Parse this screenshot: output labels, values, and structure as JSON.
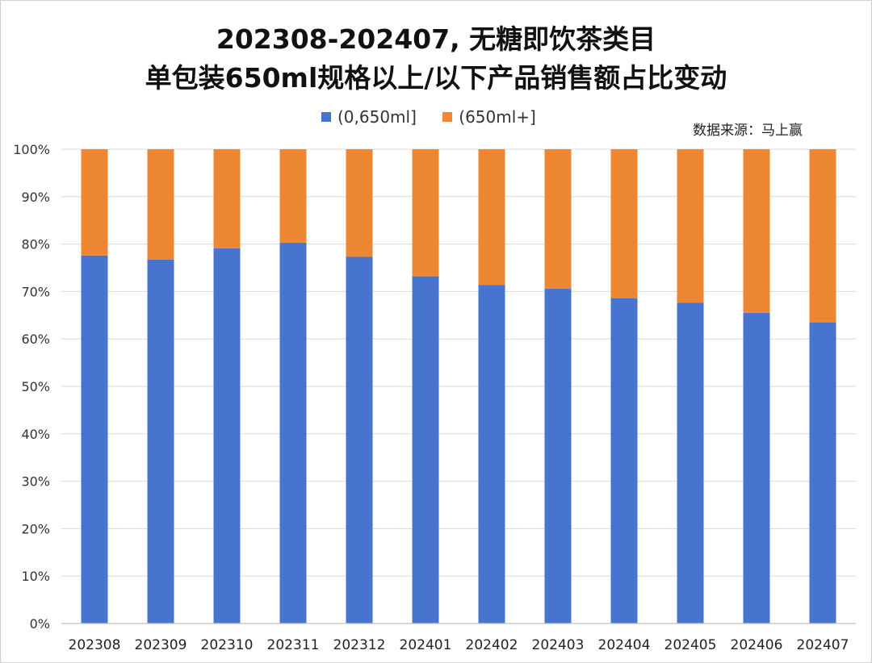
{
  "title": {
    "line1": "202308-202407, 无糖即饮茶类目",
    "line2": "单包装650ml规格以上/以下产品销售额占比变动"
  },
  "source_note": "数据来源：马上赢",
  "colors": {
    "series_small": "#4674CF",
    "series_large": "#EE8732",
    "grid": "#d9d9d9",
    "axis": "#bfbfbf"
  },
  "chart_data": {
    "type": "bar",
    "stacked": true,
    "percent_stacked": true,
    "title": "202308-202407, 无糖即饮茶类目 单包装650ml规格以上/以下产品销售额占比变动",
    "categories": [
      "202308",
      "202309",
      "202310",
      "202311",
      "202312",
      "202401",
      "202402",
      "202403",
      "202404",
      "202405",
      "202406",
      "202407"
    ],
    "series": [
      {
        "name": "(0,650ml]",
        "color": "#4674CF",
        "values": [
          77.6,
          76.7,
          79.1,
          80.3,
          77.3,
          73.2,
          71.4,
          70.6,
          68.6,
          67.6,
          65.5,
          63.5
        ]
      },
      {
        "name": "(650ml+]",
        "color": "#EE8732",
        "values": [
          22.4,
          23.3,
          20.9,
          19.7,
          22.7,
          26.8,
          28.6,
          29.4,
          31.4,
          32.4,
          34.5,
          36.5
        ]
      }
    ],
    "y_ticks": [
      "0%",
      "10%",
      "20%",
      "30%",
      "40%",
      "50%",
      "60%",
      "70%",
      "80%",
      "90%",
      "100%"
    ],
    "ylim": [
      0,
      100
    ],
    "xlabel": "",
    "ylabel": "",
    "grid": true,
    "legend_position": "top-center"
  }
}
